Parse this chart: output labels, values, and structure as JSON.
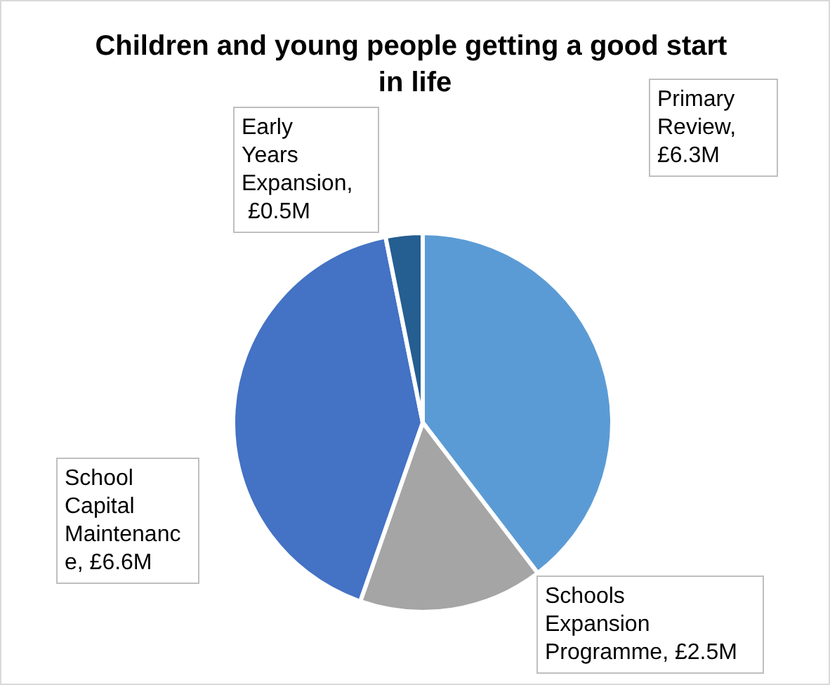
{
  "chart_data": {
    "type": "pie",
    "title": "Children and young people getting a good start in life",
    "categories": [
      "Primary Review, £6.3M",
      "Schools Expansion Programme, £2.5M",
      "School Capital Maintenance, £6.6M",
      "Early Years Expansion, £0.5M"
    ],
    "values": [
      6.3,
      2.5,
      6.6,
      0.5
    ],
    "colors": [
      "#5b9bd5",
      "#a5a5a5",
      "#4472c4",
      "#255e91"
    ],
    "legend": false
  }
}
